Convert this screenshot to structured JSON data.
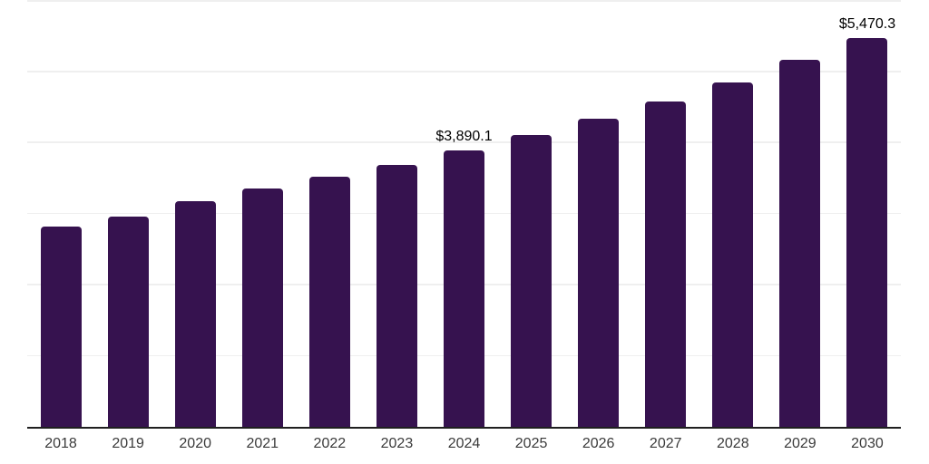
{
  "chart_data": {
    "type": "bar",
    "title": "",
    "xlabel": "",
    "ylabel": "",
    "categories": [
      "2018",
      "2019",
      "2020",
      "2021",
      "2022",
      "2023",
      "2024",
      "2025",
      "2026",
      "2027",
      "2028",
      "2029",
      "2030"
    ],
    "values": [
      2820,
      2955,
      3180,
      3350,
      3520,
      3690,
      3890.1,
      4110,
      4340,
      4585,
      4850,
      5160,
      5470.3
    ],
    "data_labels": [
      {
        "category": "2024",
        "text": "$3,890.1"
      },
      {
        "category": "2030",
        "text": "$5,470.3"
      }
    ],
    "ylim": [
      0,
      6000
    ],
    "gridline_step": 1000,
    "grid": true,
    "legend": "none",
    "colors": {
      "bar": "#36124F",
      "gridline": "#efefef",
      "axis_line": "#1f1f1f",
      "tick_label": "#3a3a3a",
      "data_label": "#000000",
      "background": "#ffffff"
    }
  }
}
